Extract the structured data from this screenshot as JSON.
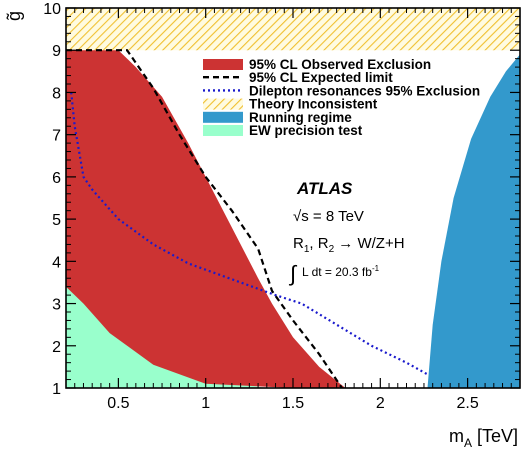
{
  "chart_data": {
    "type": "area",
    "xlabel": "m",
    "xlabel_sub": "A",
    "xlabel_unit": " [TeV]",
    "ylabel": "g̃",
    "xlim": [
      0.2,
      2.8
    ],
    "ylim": [
      1,
      10
    ],
    "xticks": [
      {
        "value": 0.5,
        "label": "0.5"
      },
      {
        "value": 1.0,
        "label": "1"
      },
      {
        "value": 1.5,
        "label": "1.5"
      },
      {
        "value": 2.0,
        "label": "2"
      },
      {
        "value": 2.5,
        "label": "2.5"
      }
    ],
    "yticks": [
      {
        "value": 1,
        "label": "1"
      },
      {
        "value": 2,
        "label": "2"
      },
      {
        "value": 3,
        "label": "3"
      },
      {
        "value": 4,
        "label": "4"
      },
      {
        "value": 5,
        "label": "5"
      },
      {
        "value": 6,
        "label": "6"
      },
      {
        "value": 7,
        "label": "7"
      },
      {
        "value": 8,
        "label": "8"
      },
      {
        "value": 9,
        "label": "9"
      },
      {
        "value": 10,
        "label": "10"
      }
    ],
    "series": [
      {
        "name": "95% CL Observed Exclusion",
        "style": "fill",
        "color": "#cc3333",
        "points": [
          [
            0.2,
            9.0
          ],
          [
            0.3,
            9.0
          ],
          [
            0.5,
            9.0
          ],
          [
            0.6,
            8.6
          ],
          [
            0.75,
            7.9
          ],
          [
            0.9,
            6.8
          ],
          [
            1.05,
            5.6
          ],
          [
            1.2,
            4.4
          ],
          [
            1.3,
            3.6
          ],
          [
            1.38,
            3.0
          ],
          [
            1.5,
            2.2
          ],
          [
            1.65,
            1.5
          ],
          [
            1.8,
            1.0
          ],
          [
            1.5,
            1.0
          ],
          [
            1.0,
            1.1
          ],
          [
            0.7,
            1.55
          ],
          [
            0.45,
            2.3
          ],
          [
            0.3,
            3.0
          ],
          [
            0.2,
            3.4
          ]
        ]
      },
      {
        "name": "95% CL Expected limit",
        "style": "dashed",
        "color": "#000000",
        "points": [
          [
            0.2,
            9.0
          ],
          [
            0.3,
            9.0
          ],
          [
            0.4,
            9.0
          ],
          [
            0.55,
            9.0
          ],
          [
            0.7,
            8.1
          ],
          [
            0.85,
            7.0
          ],
          [
            1.0,
            6.0
          ],
          [
            1.15,
            5.2
          ],
          [
            1.3,
            4.3
          ],
          [
            1.38,
            3.3
          ],
          [
            1.5,
            2.6
          ],
          [
            1.65,
            1.8
          ],
          [
            1.78,
            1.0
          ]
        ]
      },
      {
        "name": "Dilepton resonances 95% Exclusion",
        "style": "dotted",
        "color": "#1a1acc",
        "points": [
          [
            0.23,
            8.0
          ],
          [
            0.25,
            7.2
          ],
          [
            0.3,
            6.0
          ],
          [
            0.35,
            5.7
          ],
          [
            0.5,
            5.0
          ],
          [
            0.7,
            4.4
          ],
          [
            0.9,
            3.95
          ],
          [
            1.1,
            3.65
          ],
          [
            1.3,
            3.35
          ],
          [
            1.4,
            3.2
          ],
          [
            1.55,
            3.0
          ],
          [
            1.75,
            2.5
          ],
          [
            1.95,
            2.0
          ],
          [
            2.15,
            1.6
          ],
          [
            2.28,
            1.3
          ]
        ]
      },
      {
        "name": "Theory Inconsistent",
        "style": "hatch",
        "color": "#f0c030",
        "points": [
          [
            0.2,
            9.0
          ],
          [
            2.8,
            9.0
          ],
          [
            2.8,
            10.0
          ],
          [
            0.2,
            10.0
          ]
        ]
      },
      {
        "name": "Running regime",
        "style": "fill",
        "color": "#3399cc",
        "points": [
          [
            2.27,
            1.0
          ],
          [
            2.3,
            2.5
          ],
          [
            2.35,
            4.0
          ],
          [
            2.42,
            5.5
          ],
          [
            2.52,
            6.9
          ],
          [
            2.63,
            7.9
          ],
          [
            2.72,
            8.5
          ],
          [
            2.8,
            8.9
          ],
          [
            2.8,
            1.0
          ]
        ]
      },
      {
        "name": "EW precision test",
        "style": "fill",
        "color": "#99ffcc",
        "points": [
          [
            0.2,
            4.75
          ],
          [
            0.28,
            3.6
          ],
          [
            0.4,
            2.75
          ],
          [
            0.55,
            2.1
          ],
          [
            0.7,
            1.7
          ],
          [
            0.9,
            1.35
          ],
          [
            1.1,
            1.15
          ],
          [
            1.35,
            1.0
          ],
          [
            0.2,
            1.0
          ]
        ]
      }
    ],
    "legend_position": "top-right",
    "annotations": {
      "experiment": "ATLAS",
      "energy_pre": "√s = 8 TeV",
      "process_pre": "R",
      "process_sub1": "1",
      "process_mid": ", R",
      "process_sub2": "2",
      "process_post": " → W/Z+H",
      "lumi_pre": "L dt = 20.3 fb",
      "lumi_sup": "-1",
      "integral": "∫"
    }
  }
}
